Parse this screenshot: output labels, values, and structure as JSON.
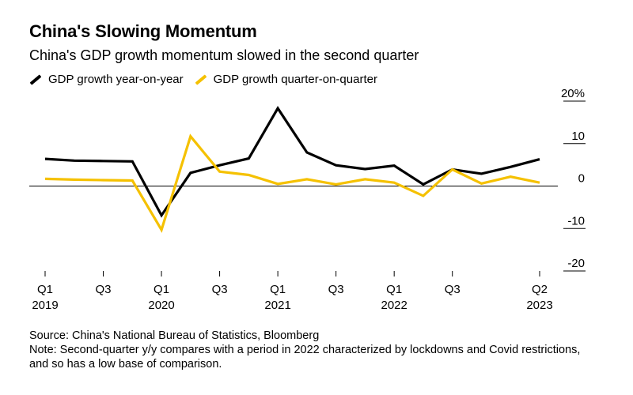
{
  "header": {
    "title": "China's Slowing Momentum",
    "subtitle": "China's GDP growth momentum slowed in the second quarter"
  },
  "colors": {
    "yoy": "#000000",
    "qoq": "#f5c100",
    "zero_line": "#000000",
    "grid": "#000000"
  },
  "chart_data": {
    "type": "line",
    "title": "China's Slowing Momentum",
    "subtitle": "China's GDP growth momentum slowed in the second quarter",
    "x": [
      "2019 Q1",
      "2019 Q2",
      "2019 Q3",
      "2019 Q4",
      "2020 Q1",
      "2020 Q2",
      "2020 Q3",
      "2020 Q4",
      "2021 Q1",
      "2021 Q2",
      "2021 Q3",
      "2021 Q4",
      "2022 Q1",
      "2022 Q2",
      "2022 Q3",
      "2022 Q4",
      "2023 Q1",
      "2023 Q2"
    ],
    "series": [
      {
        "name": "GDP growth year-on-year",
        "color": "#000000",
        "values": [
          6.4,
          6.0,
          5.9,
          5.8,
          -6.9,
          3.1,
          4.9,
          6.5,
          18.3,
          7.9,
          4.9,
          4.0,
          4.8,
          0.4,
          3.9,
          2.9,
          4.5,
          6.3
        ]
      },
      {
        "name": "GDP growth quarter-on-quarter",
        "color": "#f5c100",
        "values": [
          1.7,
          1.5,
          1.4,
          1.3,
          -10.3,
          11.7,
          3.4,
          2.6,
          0.5,
          1.6,
          0.4,
          1.6,
          0.8,
          -2.3,
          3.9,
          0.6,
          2.2,
          0.8
        ]
      }
    ],
    "ylim": [
      -20,
      20
    ],
    "yticks": [
      {
        "value": 20,
        "label": "20%"
      },
      {
        "value": 10,
        "label": "10"
      },
      {
        "value": 0,
        "label": "0"
      },
      {
        "value": -10,
        "label": "-10"
      },
      {
        "value": -20,
        "label": "-20"
      }
    ],
    "xticks": [
      {
        "index": 0,
        "label": "Q1",
        "year": "2019"
      },
      {
        "index": 2,
        "label": "Q3",
        "year": ""
      },
      {
        "index": 4,
        "label": "Q1",
        "year": "2020"
      },
      {
        "index": 6,
        "label": "Q3",
        "year": ""
      },
      {
        "index": 8,
        "label": "Q1",
        "year": "2021"
      },
      {
        "index": 10,
        "label": "Q3",
        "year": ""
      },
      {
        "index": 12,
        "label": "Q1",
        "year": "2022"
      },
      {
        "index": 14,
        "label": "Q3",
        "year": ""
      },
      {
        "index": 17,
        "label": "Q2",
        "year": "2023"
      }
    ],
    "xlabel": "",
    "ylabel": "",
    "grid": false,
    "legend": "top-left"
  },
  "footer": {
    "source": "Source: China's National Bureau of Statistics, Bloomberg",
    "note": "Note: Second-quarter y/y compares with a period in 2022 characterized by lockdowns and Covid restrictions, and so has a low base of comparison."
  }
}
